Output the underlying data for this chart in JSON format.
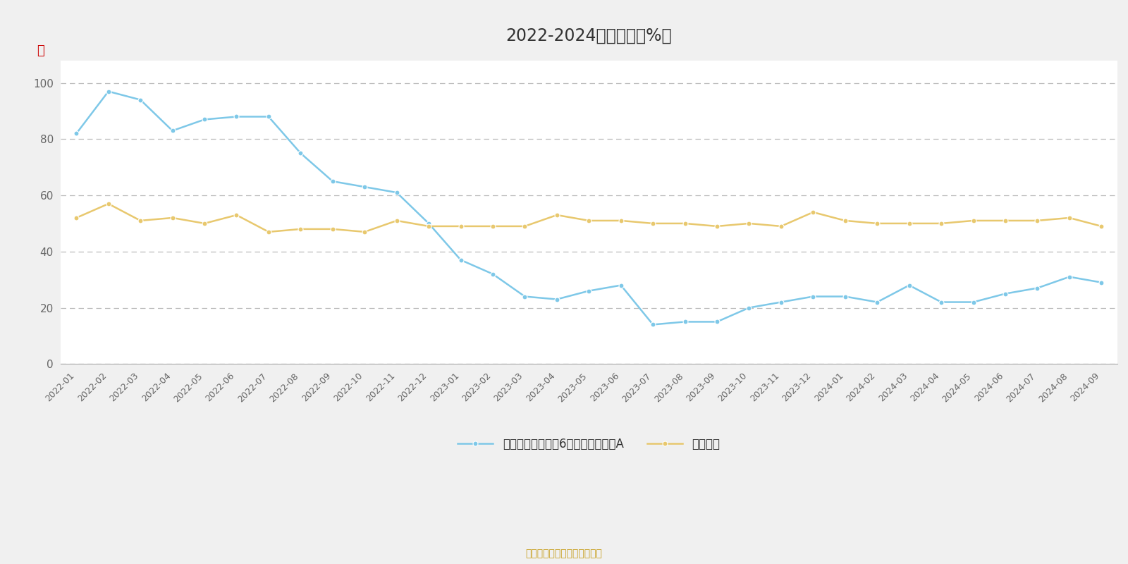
{
  "title": "2022-2024年分位图（%）",
  "title_fontsize": 17,
  "background_color": "#f0f0f0",
  "plot_bg_color": "#ffffff",
  "ylabel": "％",
  "ylim": [
    0,
    108
  ],
  "yticks": [
    0,
    20,
    40,
    60,
    80,
    100
  ],
  "x_labels": [
    "2022-01",
    "2022-02",
    "2022-03",
    "2022-04",
    "2022-05",
    "2022-06",
    "2022-07",
    "2022-08",
    "2022-09",
    "2022-10",
    "2022-11",
    "2022-12",
    "2023-01",
    "2023-02",
    "2023-03",
    "2023-04",
    "2023-05",
    "2023-06",
    "2023-07",
    "2023-08",
    "2023-09",
    "2023-10",
    "2023-11",
    "2023-12",
    "2024-01",
    "2024-02",
    "2024-03",
    "2024-04",
    "2024-05",
    "2024-06",
    "2024-07",
    "2024-08",
    "2024-09"
  ],
  "series1_label": "浦银安盛均衡优选6个月持有期混合A",
  "series1_color": "#7ec8e8",
  "series1_values": [
    82,
    97,
    94,
    83,
    87,
    88,
    88,
    75,
    65,
    63,
    61,
    50,
    37,
    32,
    24,
    23,
    26,
    28,
    14,
    15,
    15,
    20,
    22,
    24,
    24,
    22,
    28,
    22,
    22,
    25,
    27,
    31,
    29
  ],
  "series2_label": "同类平均",
  "series2_color": "#e8c86e",
  "series2_values": [
    52,
    57,
    51,
    52,
    50,
    53,
    47,
    48,
    48,
    47,
    51,
    49,
    49,
    49,
    49,
    53,
    51,
    51,
    50,
    50,
    49,
    50,
    49,
    54,
    51,
    50,
    50,
    50,
    51,
    51,
    51,
    52,
    49
  ],
  "grid_color": "#bbbbbb",
  "grid_style": "--",
  "marker_size": 5,
  "line_width": 1.8,
  "footer_text": "制图数据来自恒生聚源数据库",
  "footer_color": "#c8a020",
  "ylabel_color": "#cc0000",
  "tick_color": "#666666",
  "legend_fontsize": 12,
  "axis_label_fontsize": 9,
  "title_color": "#333333"
}
